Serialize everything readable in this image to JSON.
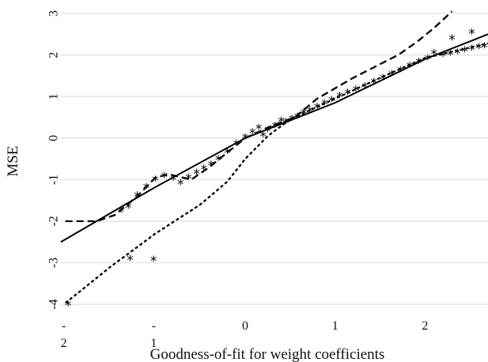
{
  "chart_data": {
    "type": "scatter",
    "title": "",
    "xlabel": "Goodness-of-fit for weight coefficients",
    "ylabel": "MSE",
    "xlim": [
      -2.05,
      2.7
    ],
    "ylim": [
      -4,
      3
    ],
    "grid": "horizontal",
    "legend": "none",
    "x_tick_labels": [
      {
        "value": -2,
        "lines": [
          "-",
          "2"
        ]
      },
      {
        "value": -1,
        "lines": [
          "-",
          "1"
        ]
      },
      {
        "value": 0,
        "lines": [
          "0"
        ]
      },
      {
        "value": 1,
        "lines": [
          "1"
        ]
      },
      {
        "value": 2,
        "lines": [
          "2"
        ]
      }
    ],
    "y_tick_labels": [
      "3",
      "2",
      "1",
      "0",
      "-1",
      "-2",
      "-3",
      "-4"
    ],
    "y_tick_values": [
      3,
      2,
      1,
      0,
      -1,
      -2,
      -3,
      -4
    ],
    "series": [
      {
        "style": "marker-star",
        "color": "#000000",
        "points": [
          [
            -1.97,
            -3.97
          ],
          [
            -1.28,
            -2.88
          ],
          [
            -1.02,
            -2.9
          ],
          [
            -1.38,
            -1.72
          ],
          [
            -1.3,
            -1.62
          ],
          [
            -1.2,
            -1.35
          ],
          [
            -1.1,
            -1.15
          ],
          [
            -1.0,
            -0.97
          ],
          [
            -0.9,
            -0.88
          ],
          [
            -0.8,
            -0.95
          ],
          [
            -0.72,
            -1.05
          ],
          [
            -0.63,
            -0.92
          ],
          [
            -0.54,
            -0.8
          ],
          [
            -0.46,
            -0.7
          ],
          [
            -0.38,
            -0.6
          ],
          [
            -0.3,
            -0.47
          ],
          [
            -0.2,
            -0.3
          ],
          [
            -0.1,
            -0.1
          ],
          [
            0.0,
            0.05
          ],
          [
            0.08,
            0.18
          ],
          [
            0.15,
            0.28
          ],
          [
            0.2,
            0.1
          ],
          [
            0.25,
            0.22
          ],
          [
            0.33,
            0.33
          ],
          [
            0.4,
            0.45
          ],
          [
            0.45,
            0.42
          ],
          [
            0.52,
            0.5
          ],
          [
            0.58,
            0.55
          ],
          [
            0.65,
            0.65
          ],
          [
            0.72,
            0.7
          ],
          [
            0.8,
            0.78
          ],
          [
            0.88,
            0.87
          ],
          [
            0.96,
            0.95
          ],
          [
            1.05,
            1.05
          ],
          [
            1.14,
            1.13
          ],
          [
            1.23,
            1.2
          ],
          [
            1.33,
            1.28
          ],
          [
            1.43,
            1.38
          ],
          [
            1.53,
            1.48
          ],
          [
            1.63,
            1.57
          ],
          [
            1.73,
            1.67
          ],
          [
            1.83,
            1.77
          ],
          [
            1.93,
            1.87
          ],
          [
            2.03,
            1.95
          ],
          [
            2.1,
            2.08
          ],
          [
            2.2,
            2.03
          ],
          [
            2.28,
            2.06
          ],
          [
            2.36,
            2.1
          ],
          [
            2.44,
            2.14
          ],
          [
            2.52,
            2.18
          ],
          [
            2.6,
            2.22
          ],
          [
            2.66,
            2.24
          ],
          [
            2.3,
            2.43
          ],
          [
            2.52,
            2.57
          ]
        ]
      },
      {
        "style": "solid-line",
        "color": "#000000",
        "points": [
          [
            -2.05,
            -2.5
          ],
          [
            -1.0,
            -1.18
          ],
          [
            0.0,
            0.0
          ],
          [
            1.0,
            0.85
          ],
          [
            2.0,
            1.9
          ],
          [
            2.7,
            2.5
          ]
        ]
      },
      {
        "style": "dash-line",
        "color": "#000000",
        "points": [
          [
            -2.0,
            -2.0
          ],
          [
            -1.65,
            -2.0
          ],
          [
            -1.45,
            -1.85
          ],
          [
            -1.2,
            -1.4
          ],
          [
            -1.0,
            -0.95
          ],
          [
            -0.85,
            -0.87
          ],
          [
            -0.6,
            -1.0
          ],
          [
            -0.4,
            -0.7
          ],
          [
            -0.2,
            -0.35
          ],
          [
            0.0,
            0.0
          ],
          [
            0.3,
            0.3
          ],
          [
            0.55,
            0.5
          ],
          [
            0.8,
            0.95
          ],
          [
            1.2,
            1.45
          ],
          [
            1.7,
            2.0
          ],
          [
            1.9,
            2.3
          ],
          [
            2.1,
            2.65
          ],
          [
            2.3,
            3.05
          ]
        ]
      },
      {
        "style": "short-dash-line",
        "color": "#000000",
        "points": [
          [
            -2.0,
            -3.97
          ],
          [
            -1.5,
            -3.1
          ],
          [
            -1.0,
            -2.3
          ],
          [
            -0.5,
            -1.6
          ],
          [
            -0.2,
            -1.05
          ],
          [
            0.0,
            -0.5
          ],
          [
            0.25,
            0.05
          ],
          [
            0.5,
            0.45
          ],
          [
            1.0,
            0.95
          ],
          [
            1.5,
            1.45
          ],
          [
            2.0,
            1.93
          ],
          [
            2.7,
            2.28
          ]
        ]
      }
    ]
  }
}
